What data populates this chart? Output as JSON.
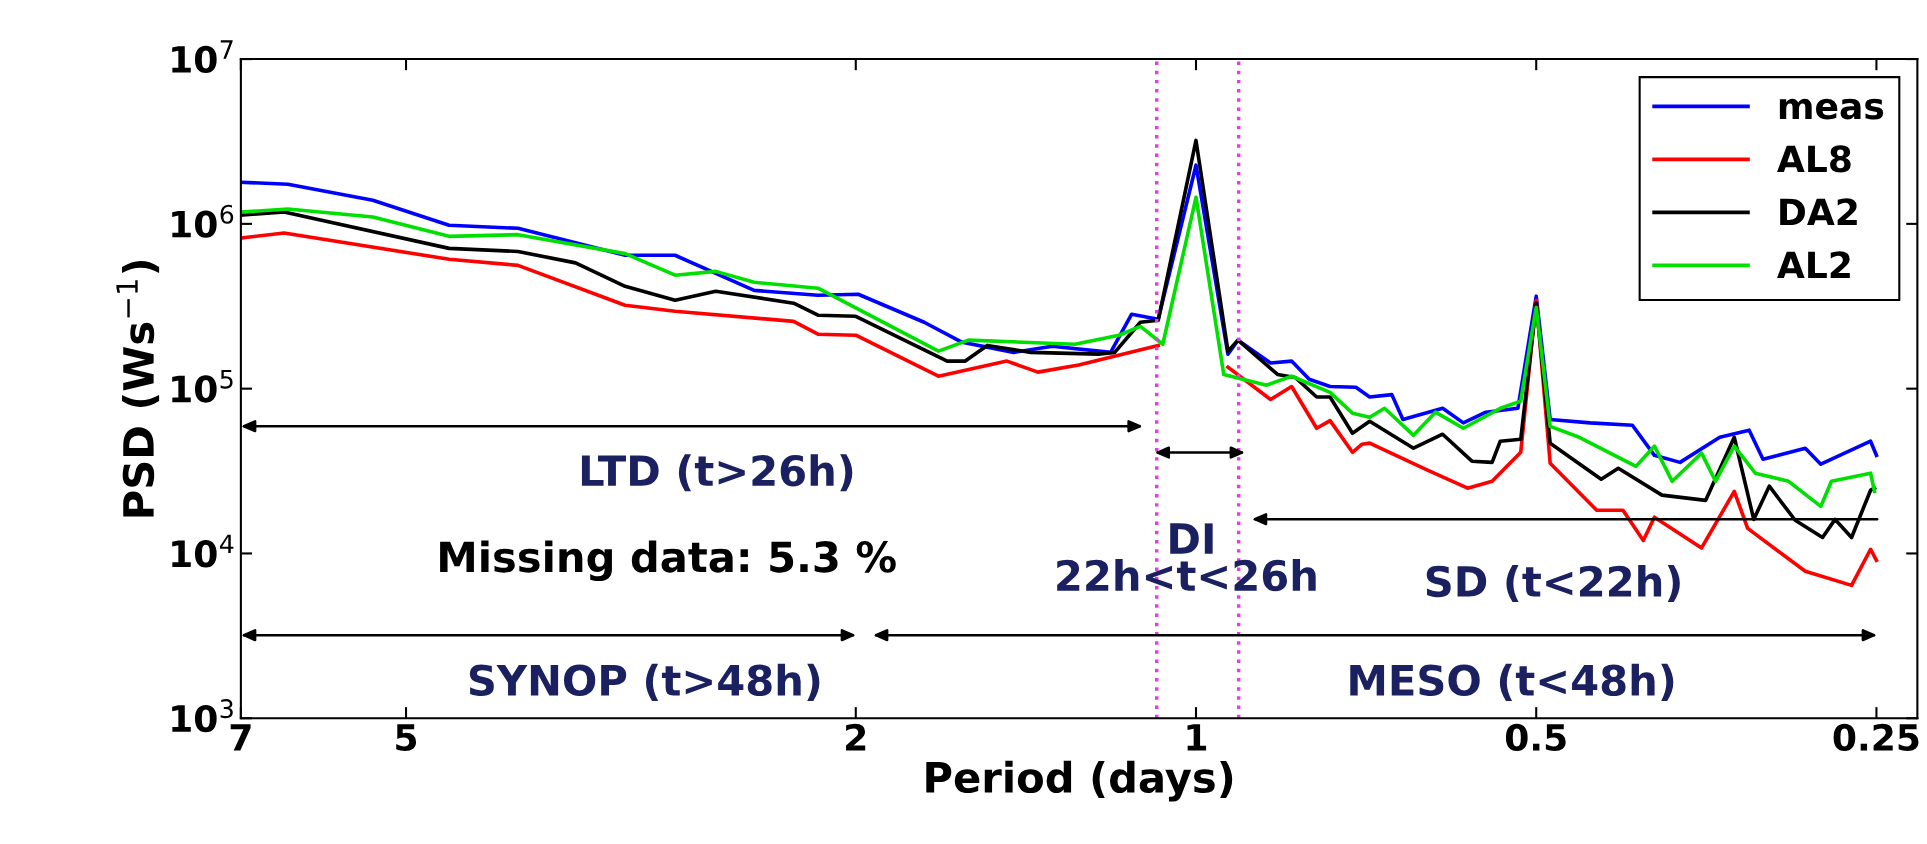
{
  "chart_data": {
    "type": "line",
    "xlabel": "Period (days)",
    "ylabel": "PSD (Ws$^{−1}$)",
    "log": "xy",
    "xlim": [
      7,
      0.23
    ],
    "ylim": [
      1000,
      10000000
    ],
    "xticks": [
      7,
      5,
      2,
      1,
      0.5,
      0.25
    ],
    "yticks": [
      {
        "value": 1000,
        "label": "10$^{3}$"
      },
      {
        "value": 10000,
        "label": "10$^{4}$"
      },
      {
        "value": 100000,
        "label": "10$^{5}$"
      },
      {
        "value": 1000000,
        "label": "10$^{6}$"
      },
      {
        "value": 10000000,
        "label": "10$^{7}$"
      }
    ],
    "grid": false,
    "legend": "top right",
    "line_style": "solid",
    "series": [
      {
        "name": "meas",
        "color": "#0000ff",
        "x": [
          7.0,
          6.36,
          5.35,
          4.58,
          3.98,
          3.2,
          2.89,
          2.46,
          2.16,
          1.99,
          1.74,
          1.61,
          1.45,
          1.34,
          1.19,
          1.14,
          1.08,
          1.0,
          0.937,
          0.918,
          0.859,
          0.823,
          0.794,
          0.761,
          0.722,
          0.702,
          0.671,
          0.656,
          0.605,
          0.58,
          0.554,
          0.519,
          0.5,
          0.486,
          0.448,
          0.411,
          0.393,
          0.373,
          0.344,
          0.324,
          0.315,
          0.289,
          0.28,
          0.253,
          0.25
        ],
        "values": [
          1790000,
          1740000,
          1390000,
          980000,
          940000,
          645000,
          645000,
          395000,
          369000,
          374000,
          253000,
          191000,
          166000,
          181000,
          166000,
          283000,
          264000,
          2270000,
          162000,
          197000,
          143000,
          147000,
          114000,
          103000,
          102000,
          89000,
          92000,
          65000,
          76000,
          62000,
          72000,
          76000,
          364000,
          65000,
          62000,
          60000,
          39400,
          35700,
          50700,
          56000,
          37300,
          43500,
          34800,
          48000,
          39400
        ]
      },
      {
        "name": "AL8",
        "color": "#ff0000",
        "x": [
          7.0,
          6.41,
          4.58,
          3.98,
          3.2,
          2.89,
          2.27,
          2.16,
          2.0,
          1.69,
          1.47,
          1.38,
          1.27,
          1.08,
          1.0,
          0.937,
          0.859,
          0.823,
          0.782,
          0.761,
          0.727,
          0.713,
          0.702,
          0.624,
          0.575,
          0.547,
          0.516,
          0.5,
          0.486,
          0.442,
          0.419,
          0.402,
          0.393,
          0.357,
          0.334,
          0.325,
          0.289,
          0.263,
          0.253,
          0.25
        ],
        "values": [
          820000,
          880000,
          610000,
          560000,
          321000,
          295000,
          256000,
          214000,
          211000,
          119000,
          147000,
          126000,
          139000,
          183000,
          null,
          135000,
          86000,
          103000,
          57500,
          64000,
          41100,
          46000,
          46700,
          32000,
          24900,
          27400,
          41100,
          344000,
          35300,
          18300,
          18300,
          12000,
          16600,
          10800,
          23800,
          14200,
          7800,
          6400,
          10600,
          9100
        ]
      },
      {
        "name": "DA2",
        "color": "#000000",
        "x": [
          7.0,
          6.41,
          4.58,
          3.98,
          3.54,
          3.2,
          2.89,
          2.66,
          2.27,
          2.16,
          2.0,
          1.66,
          1.6,
          1.53,
          1.4,
          1.22,
          1.18,
          1.12,
          1.08,
          1.0,
          0.937,
          0.918,
          0.847,
          0.817,
          0.782,
          0.761,
          0.727,
          0.702,
          0.642,
          0.605,
          0.57,
          0.547,
          0.538,
          0.516,
          0.5,
          0.486,
          0.438,
          0.423,
          0.387,
          0.354,
          0.334,
          0.321,
          0.311,
          0.295,
          0.279,
          0.272,
          0.263,
          0.253,
          0.251
        ],
        "values": [
          1130000,
          1180000,
          710000,
          680000,
          580000,
          418000,
          344000,
          390000,
          330000,
          279000,
          275000,
          147000,
          147000,
          183000,
          166000,
          162000,
          166000,
          253000,
          260000,
          3210000,
          169000,
          197000,
          122000,
          117000,
          89000,
          89000,
          53600,
          63400,
          43500,
          52900,
          36300,
          35700,
          48000,
          49300,
          330000,
          46700,
          28200,
          32900,
          22600,
          21000,
          50700,
          16100,
          25600,
          15900,
          12500,
          16100,
          12500,
          24200,
          24900
        ]
      },
      {
        "name": "AL2",
        "color": "#00e000",
        "x": [
          7.0,
          6.36,
          5.35,
          4.58,
          3.98,
          3.2,
          2.89,
          2.66,
          2.46,
          2.16,
          1.69,
          1.59,
          1.28,
          1.17,
          1.12,
          1.07,
          1.0,
          0.945,
          0.866,
          0.823,
          0.761,
          0.727,
          0.702,
          0.681,
          0.642,
          0.614,
          0.58,
          0.538,
          0.516,
          0.5,
          0.486,
          0.458,
          0.408,
          0.393,
          0.379,
          0.357,
          0.347,
          0.334,
          0.32,
          0.299,
          0.28,
          0.274,
          0.253,
          0.251
        ],
        "values": [
          1180000,
          1230000,
          1100000,
          840000,
          860000,
          660000,
          488000,
          515000,
          442000,
          407000,
          169000,
          197000,
          186000,
          211000,
          239000,
          186000,
          1450000,
          122000,
          105000,
          119000,
          95000,
          71000,
          67000,
          76000,
          52100,
          72000,
          57500,
          76000,
          84000,
          312000,
          59000,
          50700,
          33800,
          44800,
          27400,
          40600,
          27400,
          44800,
          30700,
          27400,
          19300,
          27400,
          30700,
          23800
        ]
      }
    ],
    "ref_lines": [
      {
        "axis": "x",
        "value": 1.0833,
        "color": "#e040e0",
        "line_style": "dotted"
      },
      {
        "axis": "x",
        "value": 0.9167,
        "color": "#e040e0",
        "line_style": "dotted"
      }
    ],
    "annotations": [
      "LTD (t>26h)",
      "Missing data: 5.3 %",
      "DI",
      "22h<t<26h",
      "SD (t<22h)",
      "SYNOP (t>48h)",
      "MESO (t<48h)"
    ]
  }
}
